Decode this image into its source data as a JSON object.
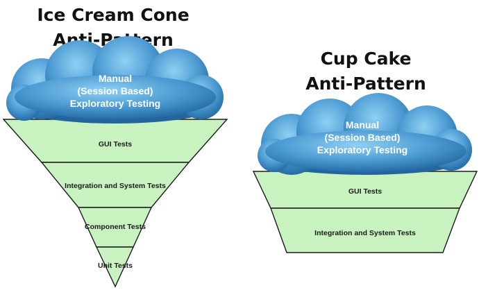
{
  "colors": {
    "layer_fill": "#c8f2c0",
    "layer_stroke": "#1a1a1a",
    "cloud_light": "#7cc0ea",
    "cloud_dark": "#2a78b4",
    "title": "#111111",
    "cloud_text": "#ffffff"
  },
  "ice_cream_cone": {
    "title_line1": "Ice Cream Cone",
    "title_line2": "Anti-Pattern",
    "cloud": {
      "line1": "Manual",
      "line2": "(Session Based)",
      "line3": "Exploratory Testing"
    },
    "layers": [
      "GUI Tests",
      "Integration and System Tests",
      "Component Tests",
      "Unit Tests"
    ]
  },
  "cup_cake": {
    "title_line1": "Cup Cake",
    "title_line2": "Anti-Pattern",
    "cloud": {
      "line1": "Manual",
      "line2": "(Session Based)",
      "line3": "Exploratory Testing"
    },
    "layers": [
      "GUI Tests",
      "Integration and System Tests"
    ]
  }
}
